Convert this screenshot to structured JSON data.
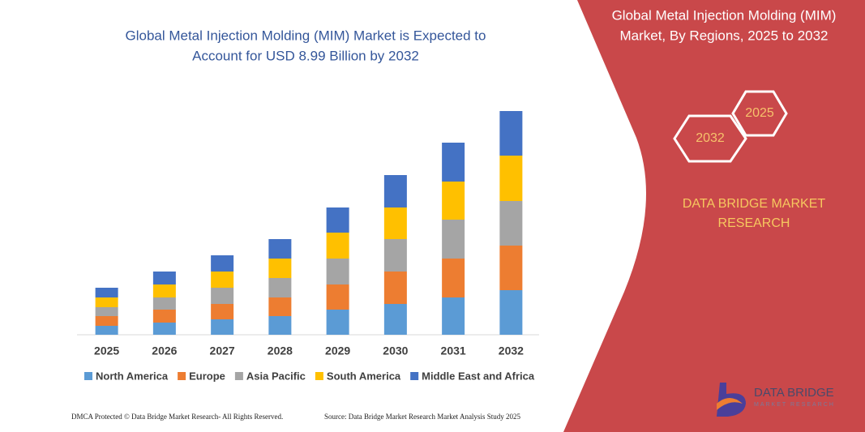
{
  "chart_data": {
    "type": "stacked_bar",
    "title": [
      "Global Metal Injection Molding (MIM) Market is Expected to",
      "Account for USD 8.99 Billion by 2032"
    ],
    "categories": [
      "2025",
      "2026",
      "2027",
      "2028",
      "2029",
      "2030",
      "2031",
      "2032"
    ],
    "series": [
      {
        "name": "North America",
        "color": "#5b9bd5",
        "values": [
          11,
          15,
          19,
          23,
          31,
          38,
          46,
          55
        ]
      },
      {
        "name": "Europe",
        "color": "#ed7d31",
        "values": [
          12,
          16,
          19,
          23,
          31,
          40,
          48,
          55
        ]
      },
      {
        "name": "Asia Pacific",
        "color": "#a5a5a5",
        "values": [
          11,
          15,
          20,
          24,
          32,
          40,
          48,
          55
        ]
      },
      {
        "name": "South America",
        "color": "#ffc000",
        "values": [
          12,
          16,
          20,
          24,
          32,
          39,
          47,
          56
        ]
      },
      {
        "name": "Middle East and Africa",
        "color": "#4472c4",
        "values": [
          12,
          16,
          20,
          24,
          31,
          40,
          48,
          55
        ]
      }
    ],
    "ylim": [
      0,
      280
    ]
  },
  "panel": {
    "title": [
      "Global Metal Injection Molding (MIM)",
      "Market, By Regions, 2025 to 2032"
    ],
    "hex_labels": [
      "2025",
      "2032"
    ],
    "brand": [
      "DATA BRIDGE MARKET",
      "RESEARCH"
    ]
  },
  "logo": {
    "name": "DATA BRIDGE",
    "tagline": "MARKET RESEARCH"
  },
  "footer": {
    "left": "DMCA Protected © Data Bridge Market Research- All Rights Reserved.",
    "right": "Source: Data Bridge Market Research Market Analysis Study 2025"
  }
}
